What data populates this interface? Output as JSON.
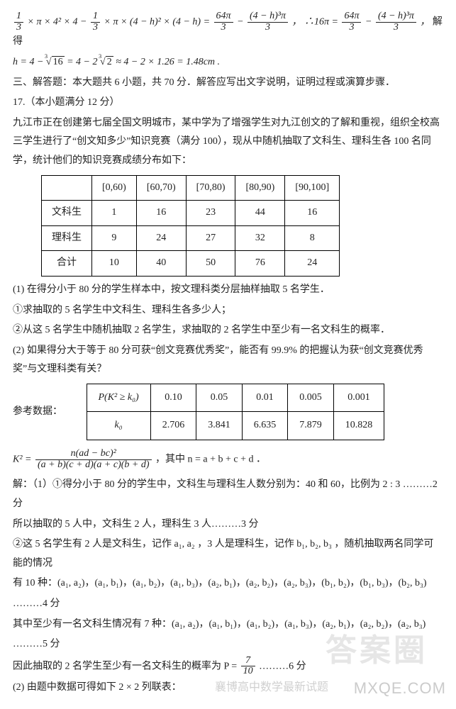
{
  "eq1_left": {
    "f1n": "1",
    "f1d": "3",
    "mid": "× π × 4² × 4 −",
    "f2n": "1",
    "f2d": "3",
    "mid2": "× π × (4 − h)² × (4 − h) =",
    "f3n": "64π",
    "f3d": "3",
    "minus": "−",
    "f4n": "(4 − h)³π",
    "f4d": "3",
    "comma": "，",
    "so": "∴16π =",
    "f5n": "64π",
    "f5d": "3",
    "minus2": "−",
    "f6n": "(4 − h)³π",
    "f6d": "3",
    "comma2": "，",
    "tail": "解得"
  },
  "eq2": {
    "pre": "h = 4 −",
    "rootA_idx": "3",
    "rootA_val": "16",
    "mid": "= 4 − 2",
    "rootB_idx": "3",
    "rootB_val": "2",
    "tail": "≈ 4 − 2 × 1.26 = 1.48cm ."
  },
  "sec3": "三、解答题：本大题共 6 小题，共 70 分．解答应写出文字说明，证明过程或演算步骤．",
  "q17": "17.（本小题满分 12 分）",
  "para1": "九江市正在创建第七届全国文明城市，某中学为了增强学生对九江创文的了解和重视，组织全校高三学生进行了“创文知多少”知识竞赛（满分 100），现从中随机抽取了文科生、理科生各 100 名同学，统计他们的知识竞赛成绩分布如下：",
  "table1": {
    "header": [
      "",
      "[0,60)",
      "[60,70)",
      "[70,80)",
      "[80,90)",
      "[90,100]"
    ],
    "rows": [
      [
        "文科生",
        "1",
        "16",
        "23",
        "44",
        "16"
      ],
      [
        "理科生",
        "9",
        "24",
        "27",
        "32",
        "8"
      ],
      [
        "合计",
        "10",
        "40",
        "50",
        "76",
        "24"
      ]
    ]
  },
  "p_1": "(1) 在得分小于 80 分的学生样本中，按文理科类分层抽样抽取 5 名学生．",
  "p_1a": "①求抽取的 5 名学生中文科生、理科生各多少人；",
  "p_1b": "②从这 5 名学生中随机抽取 2 名学生，求抽取的 2 名学生中至少有一名文科生的概率．",
  "p_2": "(2) 如果得分大于等于 80 分可获“创文竞赛优秀奖”，能否有 99.9% 的把握认为获“创文竞赛优秀奖”与文理科类有关？",
  "reflabel": "参考数据：",
  "table2": {
    "r1": [
      "P(K² ≥ k₀)",
      "0.10",
      "0.05",
      "0.01",
      "0.005",
      "0.001"
    ],
    "r2": [
      "k₀",
      "2.706",
      "3.841",
      "6.635",
      "7.879",
      "10.828"
    ]
  },
  "k2formula": {
    "lhs": "K² =",
    "num": "n(ad − bc)²",
    "den": "(a + b)(c + d)(a + c)(b + d)",
    "tail": "，其中 n = a + b + c + d ．"
  },
  "sol1": "解：（1）①得分小于 80 分的学生中，文科生与理科生人数分别为：40 和 60，比例为 2 : 3 ………2 分",
  "sol2": "所以抽取的 5 人中，文科生 2 人，理科生 3 人………3 分",
  "sol3a": "②这 5 名学生有 2 人是文科生，记作 a₁, a₂ ，3 人是理科生，记作 b₁, b₂, b₃ ，随机抽取两名同学可能的情况",
  "sol3b": "有 10 种：(a₁, a₂)，(a₁, b₁)，(a₁, b₂)，(a₁, b₃)，(a₂, b₁)，(a₂, b₂)，(a₂, b₃)，(b₁, b₂)，(b₁, b₃)，(b₂, b₃)",
  "sol3c": "………4 分",
  "sol4a": "其中至少有一名文科生情况有 7 种：(a₁, a₂)，(a₁, b₁)，(a₁, b₂)，(a₁, b₃)，(a₂, b₁)，(a₂, b₂)，(a₂, b₃)",
  "sol4b": "………5 分",
  "sol5": {
    "pre": "因此抽取的 2 名学生至少有一名文科生的概率为 P =",
    "num": "7",
    "den": "10",
    "tail": "………6 分"
  },
  "sol6": "(2) 由题中数据可得如下 2 × 2 列联表：",
  "wm_big": "答案圈",
  "wm1": "襄博高中数学最新试题",
  "wm2": "MXQE.COM",
  "colors": {
    "text": "#222222",
    "border": "#000000",
    "bg": "#ffffff",
    "watermark": "rgba(170,170,170,0.55)"
  }
}
